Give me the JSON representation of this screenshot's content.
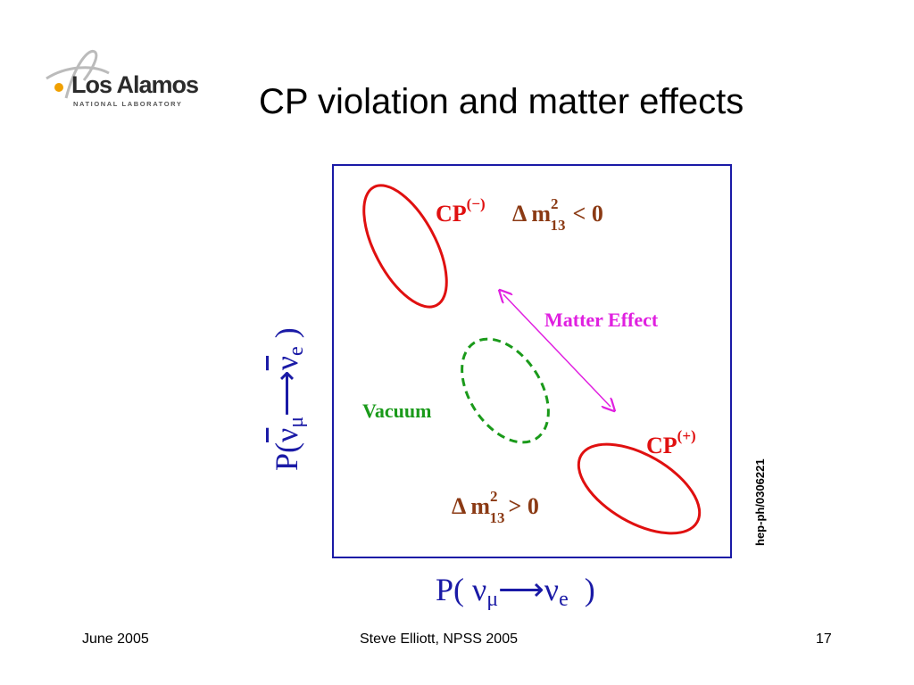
{
  "logo": {
    "name": "Los Alamos",
    "subtitle": "NATIONAL LABORATORY"
  },
  "title": "CP violation and matter effects",
  "diagram": {
    "cp_minus": {
      "cp": "CP",
      "sup": "(−)",
      "delta": "Δ m",
      "sup2": "2",
      "sub": "13",
      "relation": "< 0"
    },
    "matter_effect": "Matter Effect",
    "vacuum": "Vacuum",
    "cp_plus": {
      "cp": "CP",
      "sup": "(+)"
    },
    "delta_plus": {
      "delta": "Δ m",
      "sup2": "2",
      "sub": "13",
      "relation": "> 0"
    },
    "colors": {
      "frame": "#1a1aa6",
      "red": "#e01010",
      "brown": "#8b3a14",
      "magenta": "#e020e0",
      "green": "#1a9a1a"
    }
  },
  "axes": {
    "y": {
      "p": "P(",
      "nu_mu": "ν",
      "mu": "μ",
      "arrow": "⟶",
      "nu_e": "ν",
      "e": "e",
      "close": ")"
    },
    "x": {
      "p": "P(",
      "nu_mu": "ν",
      "mu": "μ",
      "arrow": "⟶",
      "nu_e": "ν",
      "e": "e",
      "close": ")"
    }
  },
  "reference": "hep-ph/0306221",
  "footer": {
    "left": "June 2005",
    "center": "Steve Elliott, NPSS 2005",
    "right": "17"
  }
}
